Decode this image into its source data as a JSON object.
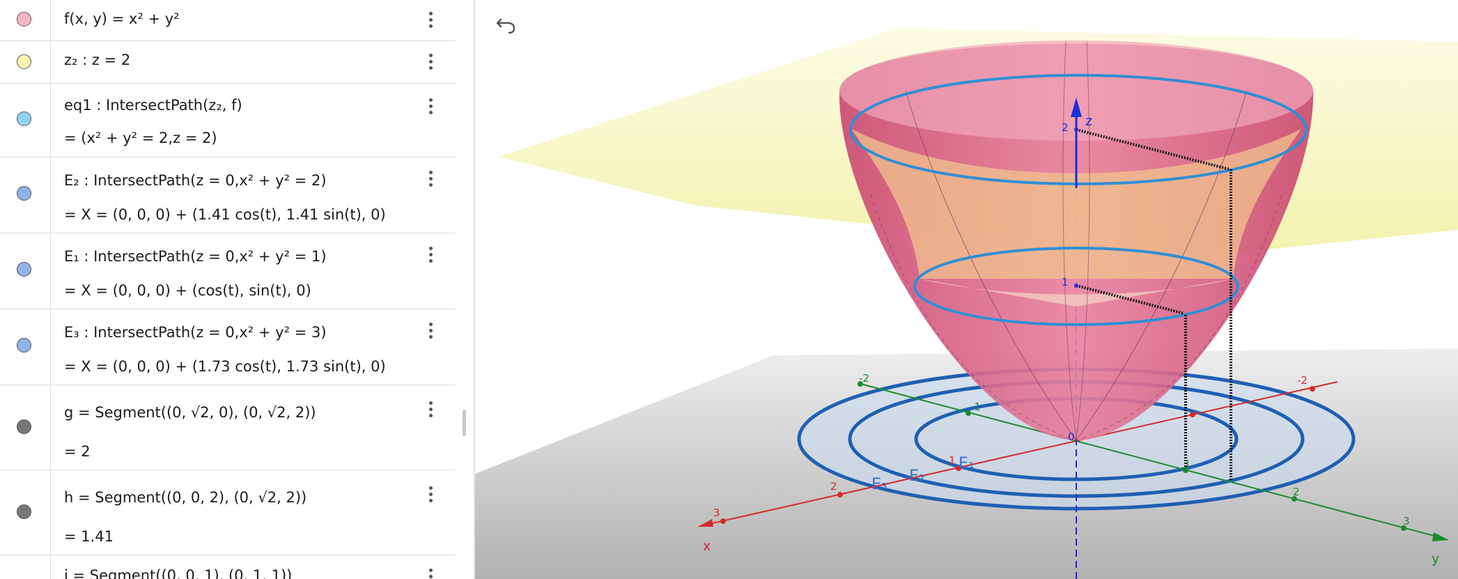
{
  "algebra": {
    "rows": [
      {
        "name": "f",
        "color": "#f7b6c8",
        "lines": [
          "f(x, y)  =  x² + y²"
        ]
      },
      {
        "name": "z2",
        "color": "#f7f7b0",
        "lines": [
          "z₂ :  z  =  2"
        ]
      },
      {
        "name": "eq1",
        "color": "#8fd3f4",
        "lines": [
          "eq1 : IntersectPath(z₂, f)",
          "=  (x² + y² = 2,z = 2)"
        ]
      },
      {
        "name": "E2",
        "color": "#8fb3e8",
        "lines": [
          "E₂ : IntersectPath(z  =  0,x² + y²  =  2)",
          "=  X = (0, 0, 0) + (1.41 cos(t), 1.41 sin(t), 0)"
        ]
      },
      {
        "name": "E1",
        "color": "#8fb3e8",
        "lines": [
          "E₁ : IntersectPath(z  =  0,x² + y²  =  1)",
          "=  X = (0, 0, 0) + (cos(t), sin(t), 0)"
        ]
      },
      {
        "name": "E3",
        "color": "#8fb3e8",
        "lines": [
          "E₃ : IntersectPath(z  =  0,x² + y²  =  3)",
          "=  X = (0, 0, 0) + (1.73 cos(t), 1.73 sin(t), 0)"
        ]
      },
      {
        "name": "g",
        "color": "#777777",
        "lines": [
          "g  =  Segment((0, √2, 0), (0, √2, 2))",
          "=  2"
        ]
      },
      {
        "name": "h",
        "color": "#777777",
        "lines": [
          "h  =  Segment((0, 0, 2), (0, √2, 2))",
          "=  1.41"
        ]
      },
      {
        "name": "i",
        "color": "#777777",
        "lines": [
          "i  =  Segment((0, 0, 1), (0, 1, 1))"
        ]
      }
    ]
  },
  "graphics": {
    "axis_labels": {
      "x": "x",
      "y": "y",
      "z": "z"
    },
    "x_ticks": [
      "3",
      "2",
      "1",
      "-2"
    ],
    "y_ticks": [
      "-2",
      "-1",
      "1",
      "2",
      "3"
    ],
    "z_ticks": [
      "2",
      "1",
      "0"
    ],
    "curve_labels": [
      "E₃",
      "E₂",
      "E₁"
    ],
    "colors": {
      "surface": "#d95b85",
      "plane": "#f2f2a8",
      "circle_top": "#2f8fd6",
      "circle_ground": "#1f5fb3",
      "x_axis": "#d42a2a",
      "y_axis": "#1e8a2e",
      "z_axis": "#1a2fd6"
    }
  },
  "toolbar": {
    "undo_icon": "undo-icon"
  }
}
